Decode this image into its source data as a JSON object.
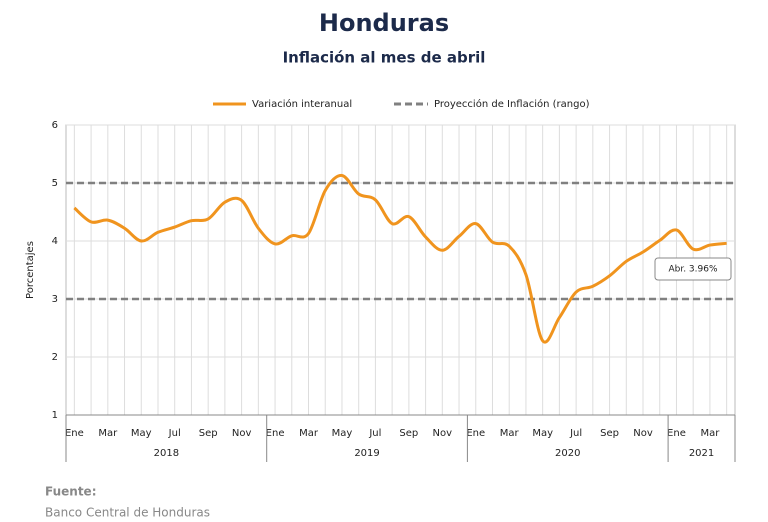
{
  "chart_data": {
    "type": "line",
    "title": "Honduras",
    "subtitle": "Inflación al mes de abril",
    "y_label": "Porcentajes",
    "categories": [
      "Ene",
      null,
      "Mar",
      null,
      "May",
      null,
      "Jul",
      null,
      "Sep",
      null,
      "Nov",
      null,
      "Ene",
      null,
      "Mar",
      null,
      "May",
      null,
      "Jul",
      null,
      "Sep",
      null,
      "Nov",
      null,
      "Ene",
      null,
      "Mar",
      null,
      "May",
      null,
      "Jul",
      null,
      "Sep",
      null,
      "Nov",
      null,
      "Ene",
      null,
      "Mar",
      null
    ],
    "year_labels": [
      "2018",
      "2019",
      "2020",
      "2021"
    ],
    "year_spans": [
      12,
      12,
      12,
      4
    ],
    "series": [
      {
        "name": "Variación interanual",
        "color": "#f0941e",
        "values": [
          4.57,
          4.33,
          4.36,
          4.22,
          4.0,
          4.15,
          4.24,
          4.35,
          4.38,
          4.67,
          4.7,
          4.22,
          3.95,
          4.09,
          4.13,
          4.87,
          5.13,
          4.81,
          4.71,
          4.3,
          4.42,
          4.07,
          3.84,
          4.08,
          4.3,
          3.98,
          3.91,
          3.42,
          2.28,
          2.68,
          3.12,
          3.22,
          3.4,
          3.65,
          3.81,
          4.01,
          4.19,
          3.86,
          3.93,
          3.96
        ]
      }
    ],
    "reference_lines": {
      "name": "Proyección de Inflación (rango)",
      "color": "#808080",
      "values": [
        5,
        3
      ]
    },
    "annotation": "Abr. 3.96%",
    "ylim": [
      1,
      6
    ],
    "yticks": [
      1,
      2,
      3,
      4,
      5,
      6
    ],
    "grid": true,
    "source_label": "Fuente:",
    "source": "Banco Central de Honduras"
  }
}
